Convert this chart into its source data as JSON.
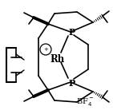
{
  "bg_color": "#ffffff",
  "text_color": "#000000",
  "line_color": "#000000",
  "lw": 1.2,
  "figsize": [
    1.41,
    1.38
  ],
  "dpi": 100,
  "rh_label": "Rh",
  "rh_fontsize": 8.5,
  "p_fontsize": 8,
  "bf4_fontsize": 7,
  "circle_plus_fontsize": 6
}
